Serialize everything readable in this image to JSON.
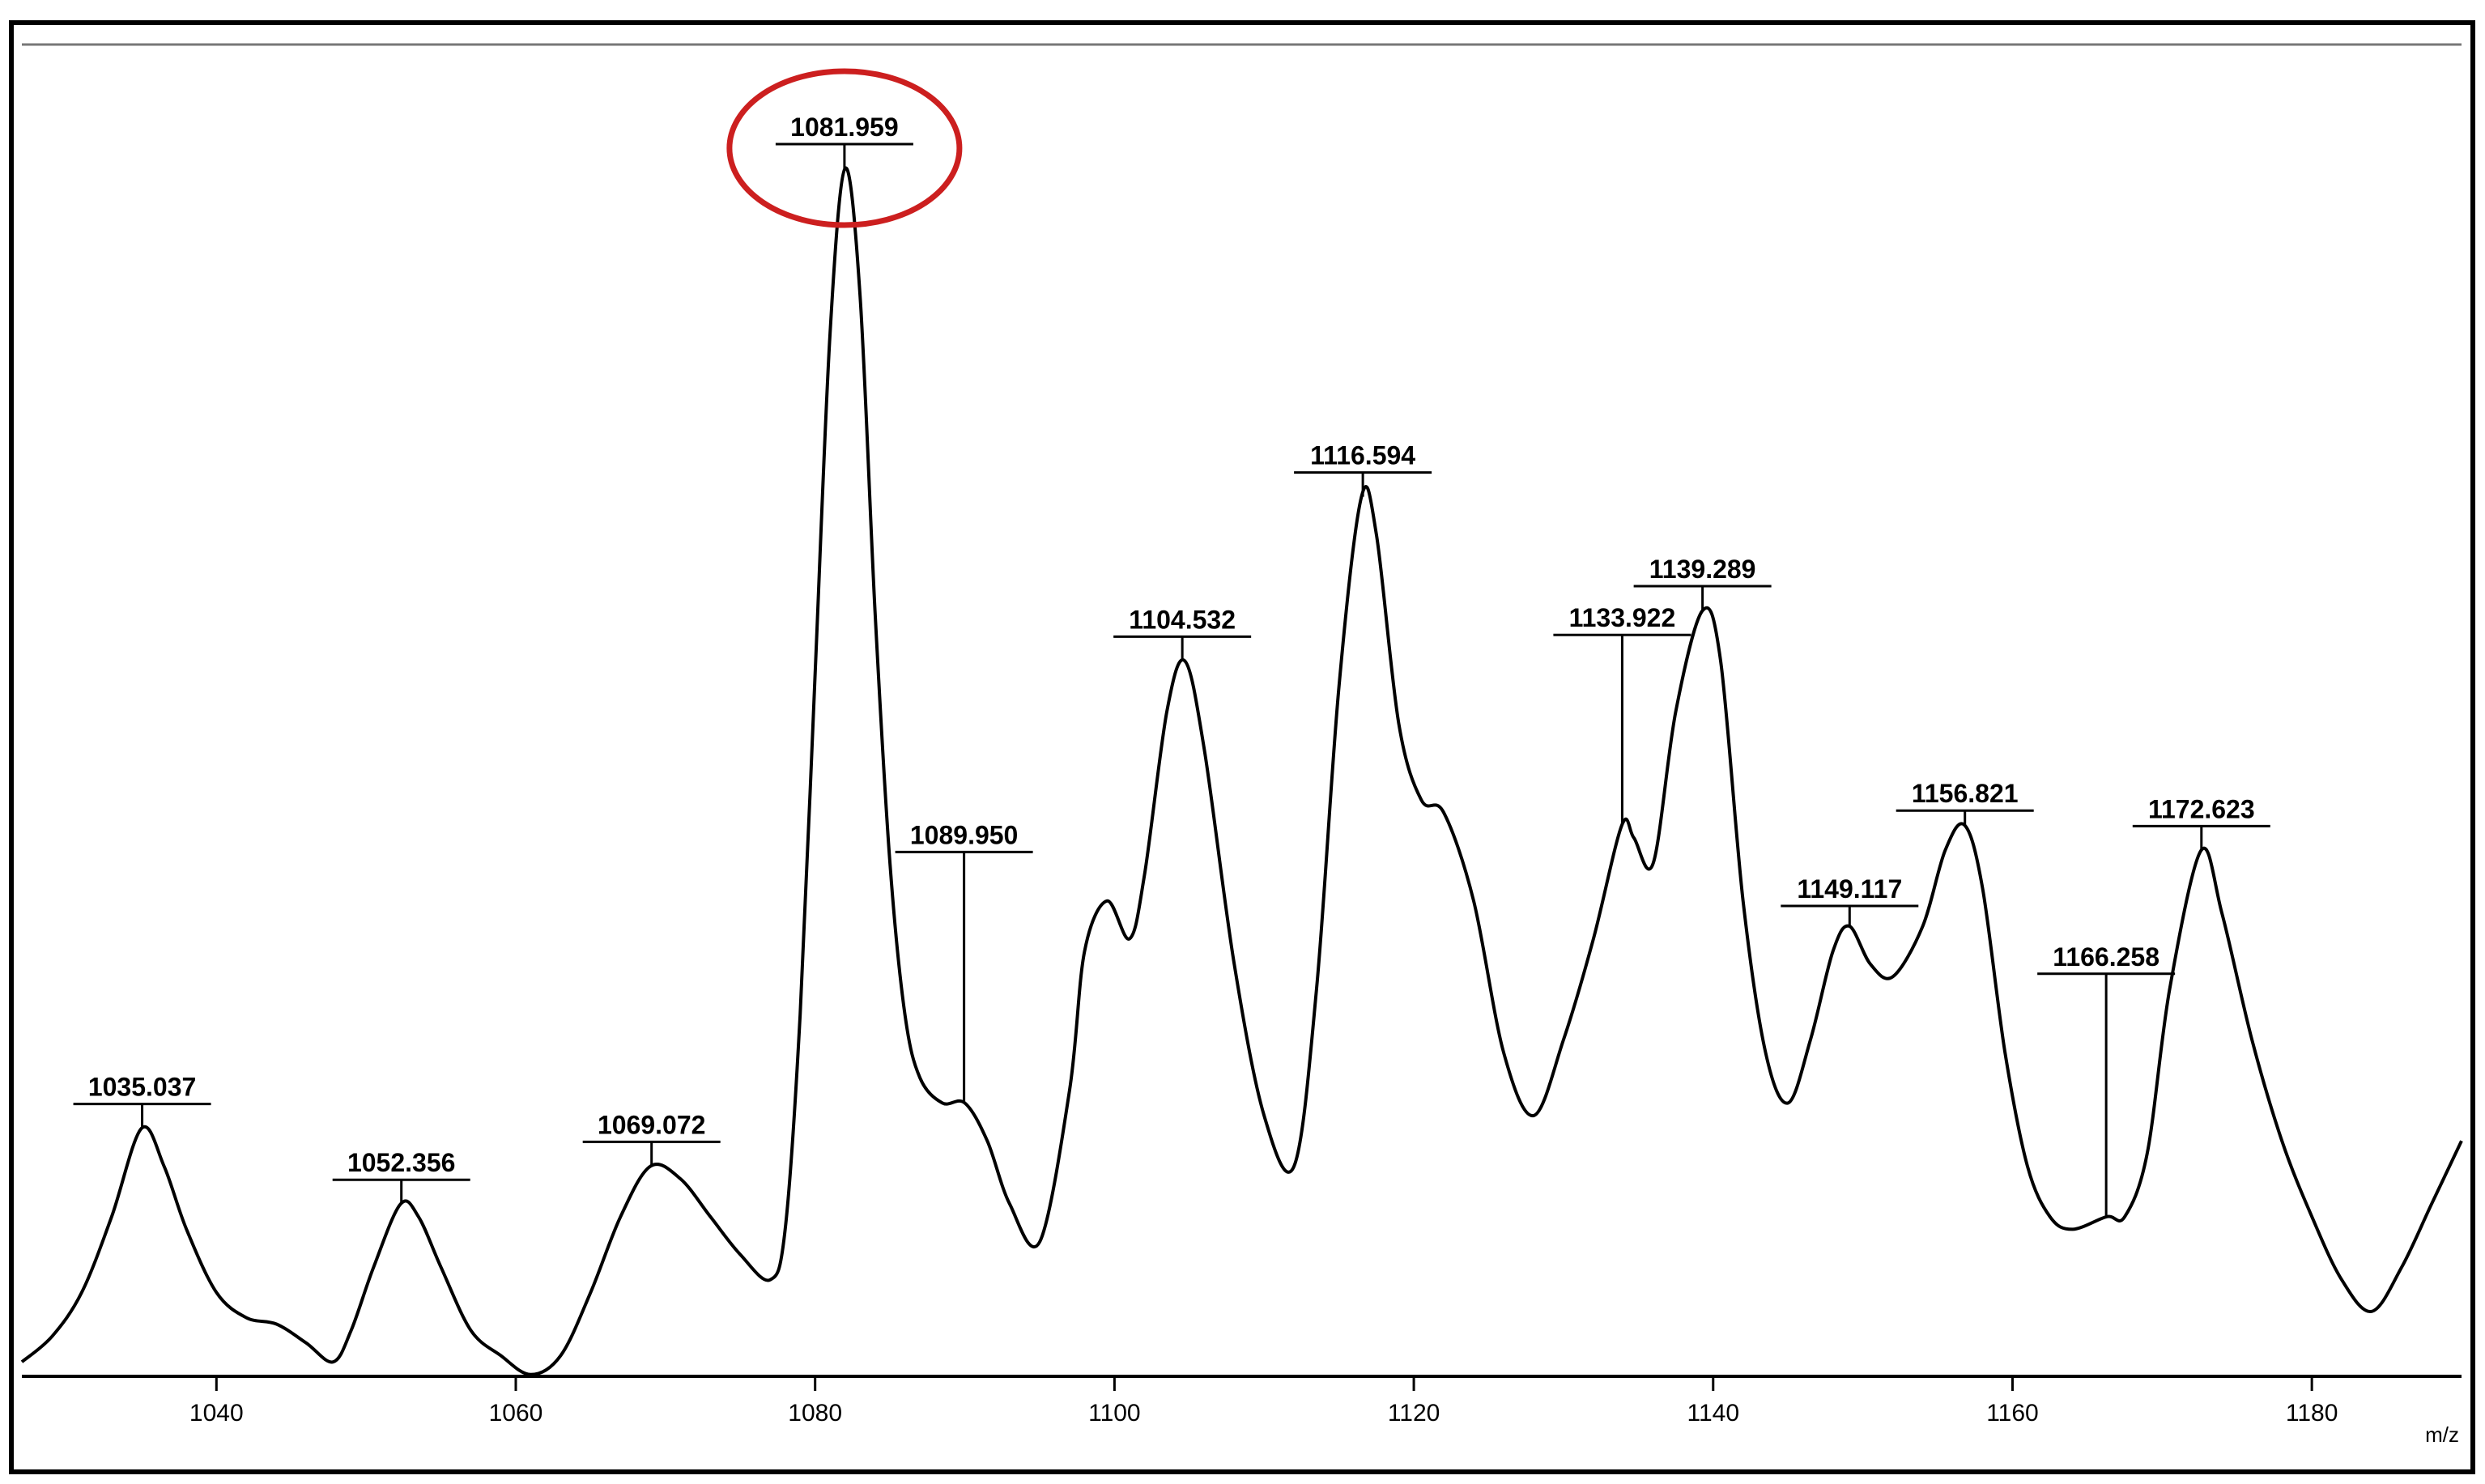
{
  "chart_data": {
    "type": "line",
    "title": "",
    "xlabel": "m/z",
    "ylabel": "",
    "xlim": [
      1027,
      1190
    ],
    "ylim": [
      0,
      100
    ],
    "x_ticks": [
      1040,
      1060,
      1080,
      1100,
      1120,
      1140,
      1160,
      1180
    ],
    "grid": false,
    "legend": "none",
    "colors": {
      "line": "#000000",
      "highlight": "#cc1f1f",
      "frame": "#000000"
    },
    "highlighted_peak": "1081.959",
    "peak_labels": [
      {
        "label": "1035.037",
        "x": 1035.037,
        "y": 19
      },
      {
        "label": "1052.356",
        "x": 1052.356,
        "y": 13
      },
      {
        "label": "1069.072",
        "x": 1069.072,
        "y": 16
      },
      {
        "label": "1081.959",
        "x": 1081.959,
        "y": 95
      },
      {
        "label": "1089.950",
        "x": 1089.95,
        "y": 21
      },
      {
        "label": "1104.532",
        "x": 1104.532,
        "y": 56
      },
      {
        "label": "1116.594",
        "x": 1116.594,
        "y": 69
      },
      {
        "label": "1133.922",
        "x": 1133.922,
        "y": 43
      },
      {
        "label": "1139.289",
        "x": 1139.289,
        "y": 60
      },
      {
        "label": "1149.117",
        "x": 1149.117,
        "y": 35
      },
      {
        "label": "1156.821",
        "x": 1156.821,
        "y": 43
      },
      {
        "label": "1166.258",
        "x": 1166.258,
        "y": 12
      },
      {
        "label": "1172.623",
        "x": 1172.623,
        "y": 41
      }
    ],
    "series": [
      {
        "values": [
          [
            1027,
            0.5
          ],
          [
            1029,
            2.5
          ],
          [
            1031,
            6
          ],
          [
            1033,
            12
          ],
          [
            1035,
            19
          ],
          [
            1036.5,
            16
          ],
          [
            1038,
            11
          ],
          [
            1040,
            6
          ],
          [
            1042,
            4
          ],
          [
            1044,
            3.5
          ],
          [
            1046,
            2
          ],
          [
            1047.8,
            0.5
          ],
          [
            1049,
            3
          ],
          [
            1050.5,
            8
          ],
          [
            1052.3,
            13
          ],
          [
            1053.5,
            12
          ],
          [
            1055,
            8
          ],
          [
            1057,
            3
          ],
          [
            1059,
            1
          ],
          [
            1061,
            -0.5
          ],
          [
            1063,
            1
          ],
          [
            1065,
            6
          ],
          [
            1067,
            12
          ],
          [
            1069,
            16
          ],
          [
            1071,
            15
          ],
          [
            1073,
            12
          ],
          [
            1075,
            9
          ],
          [
            1077,
            7
          ],
          [
            1078,
            11
          ],
          [
            1079,
            28
          ],
          [
            1080,
            55
          ],
          [
            1081,
            82
          ],
          [
            1082,
            95
          ],
          [
            1083,
            85
          ],
          [
            1084,
            60
          ],
          [
            1085,
            40
          ],
          [
            1086,
            28
          ],
          [
            1087,
            23
          ],
          [
            1088.5,
            21
          ],
          [
            1090,
            21
          ],
          [
            1091.5,
            18
          ],
          [
            1093,
            13
          ],
          [
            1095,
            10
          ],
          [
            1097,
            22
          ],
          [
            1098,
            33
          ],
          [
            1099.5,
            37
          ],
          [
            1101,
            34
          ],
          [
            1102,
            39
          ],
          [
            1103.5,
            52
          ],
          [
            1104.7,
            56
          ],
          [
            1106,
            49
          ],
          [
            1108,
            32
          ],
          [
            1110,
            20
          ],
          [
            1112,
            16
          ],
          [
            1113.5,
            30
          ],
          [
            1115,
            54
          ],
          [
            1116.5,
            69
          ],
          [
            1117.5,
            66
          ],
          [
            1119,
            51
          ],
          [
            1120.5,
            45
          ],
          [
            1122,
            44
          ],
          [
            1124,
            37
          ],
          [
            1126,
            25
          ],
          [
            1128,
            20
          ],
          [
            1130,
            26
          ],
          [
            1132,
            34
          ],
          [
            1133.9,
            43
          ],
          [
            1134.7,
            42
          ],
          [
            1136,
            40
          ],
          [
            1137.5,
            52
          ],
          [
            1139.3,
            60
          ],
          [
            1140.5,
            56
          ],
          [
            1142,
            37
          ],
          [
            1143.5,
            25
          ],
          [
            1145,
            21
          ],
          [
            1146.5,
            26
          ],
          [
            1148,
            33
          ],
          [
            1149.1,
            35
          ],
          [
            1150.5,
            32
          ],
          [
            1152,
            31
          ],
          [
            1154,
            35
          ],
          [
            1155.5,
            41
          ],
          [
            1156.8,
            43
          ],
          [
            1158,
            38
          ],
          [
            1159.5,
            25
          ],
          [
            1161,
            16
          ],
          [
            1162.5,
            12
          ],
          [
            1164,
            11
          ],
          [
            1166.3,
            12
          ],
          [
            1167.5,
            12
          ],
          [
            1169,
            17
          ],
          [
            1170.5,
            30
          ],
          [
            1172.6,
            41
          ],
          [
            1174,
            36
          ],
          [
            1176,
            26
          ],
          [
            1178,
            18
          ],
          [
            1180,
            12
          ],
          [
            1182,
            7
          ],
          [
            1184,
            4.5
          ],
          [
            1186,
            8
          ],
          [
            1188,
            13
          ],
          [
            1190,
            18
          ]
        ]
      }
    ]
  }
}
